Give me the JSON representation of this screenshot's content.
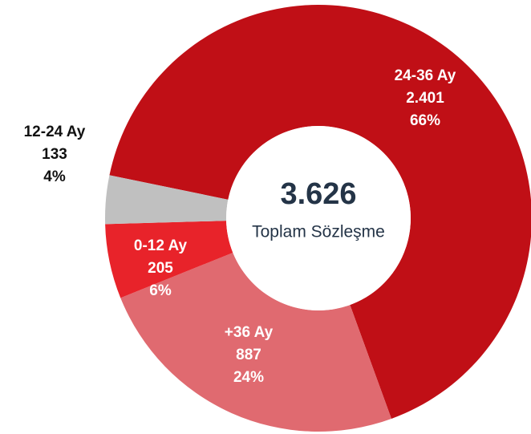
{
  "chart_data": {
    "type": "donut",
    "center_title": "3.626",
    "center_subtitle": "Toplam Sözleşme",
    "categories": [
      "24-36 Ay",
      "+36 Ay",
      "0-12 Ay",
      "12-24 Ay"
    ],
    "values": [
      2401,
      887,
      205,
      133
    ],
    "value_labels": [
      "2.401",
      "887",
      "205",
      "133"
    ],
    "shares": [
      66,
      24,
      6,
      4
    ],
    "share_labels": [
      "66%",
      "24%",
      "6%",
      "4%"
    ],
    "colors": [
      "#c00f16",
      "#e06a70",
      "#e8232a",
      "#c0c0c0"
    ]
  }
}
